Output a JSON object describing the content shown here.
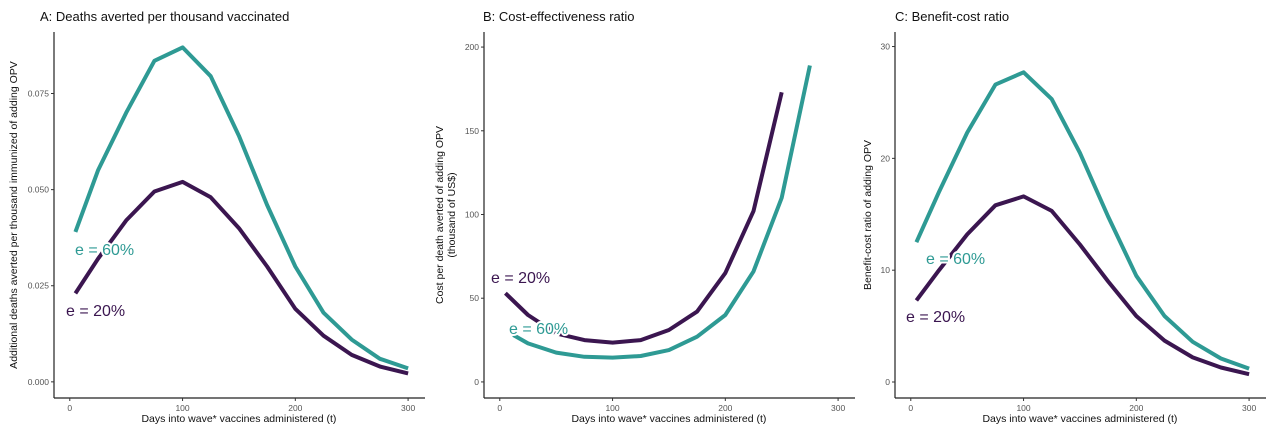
{
  "colors": {
    "e20": "#3b1650",
    "e60": "#2e9a94"
  },
  "chart_data": [
    {
      "type": "line",
      "title": "A: Deaths averted per thousand vaccinated",
      "xlabel": "Days into wave* vaccines administered (t)",
      "ylabel": "Additional deaths averted per thousand immunized of adding OPV",
      "xlim": [
        -14,
        315
      ],
      "ylim": [
        -0.0042,
        0.091
      ],
      "xticks": [
        0,
        100,
        200,
        300
      ],
      "xtick_labels": [
        "0",
        "100",
        "200",
        "300"
      ],
      "yticks": [
        0,
        0.025,
        0.05,
        0.075
      ],
      "ytick_labels": [
        "0.000",
        "0.025",
        "0.050",
        "0.075"
      ],
      "grid": false,
      "series": [
        {
          "name": "e = 60%",
          "color_key": "e60",
          "x": [
            5,
            25,
            50,
            75,
            100,
            125,
            150,
            175,
            200,
            225,
            250,
            275,
            300
          ],
          "y": [
            0.039,
            0.055,
            0.07,
            0.0835,
            0.087,
            0.0795,
            0.064,
            0.046,
            0.03,
            0.018,
            0.011,
            0.006,
            0.0035
          ]
        },
        {
          "name": "e = 20%",
          "color_key": "e20",
          "x": [
            5,
            25,
            50,
            75,
            100,
            125,
            150,
            175,
            200,
            225,
            250,
            275,
            300
          ],
          "y": [
            0.023,
            0.032,
            0.042,
            0.0495,
            0.052,
            0.048,
            0.04,
            0.03,
            0.019,
            0.012,
            0.007,
            0.004,
            0.0022
          ]
        }
      ]
    },
    {
      "type": "line",
      "title": "B: Cost-effectiveness ratio",
      "xlabel": "Days into wave* vaccines administered (t)",
      "ylabel": "Cost per death averted of adding OPV",
      "ylabel2": "(thousand of US$)",
      "xlim": [
        -14,
        315
      ],
      "ylim": [
        -9.6,
        209
      ],
      "xticks": [
        0,
        100,
        200,
        300
      ],
      "xtick_labels": [
        "0",
        "100",
        "200",
        "300"
      ],
      "yticks": [
        0,
        50,
        100,
        150,
        200
      ],
      "ytick_labels": [
        "0",
        "50",
        "100",
        "150",
        "200"
      ],
      "grid": false,
      "series": [
        {
          "name": "e = 20%",
          "color_key": "e20",
          "x": [
            5,
            25,
            50,
            75,
            100,
            125,
            150,
            175,
            200,
            225,
            250
          ],
          "y": [
            53,
            40,
            29,
            25,
            23.5,
            25,
            31,
            42,
            65,
            102,
            173
          ]
        },
        {
          "name": "e = 60%",
          "color_key": "e60",
          "x": [
            12,
            25,
            50,
            75,
            100,
            125,
            150,
            175,
            200,
            225,
            250,
            275
          ],
          "y": [
            28,
            23,
            17.5,
            15,
            14.5,
            15.5,
            19,
            27,
            40,
            66,
            110,
            189
          ]
        }
      ]
    },
    {
      "type": "line",
      "title": "C: Benefit-cost ratio",
      "xlabel": "Days into wave* vaccines administered (t)",
      "ylabel": "Benefit-cost ratio of adding OPV",
      "xlim": [
        -14,
        315
      ],
      "ylim": [
        -1.43,
        31.3
      ],
      "xticks": [
        0,
        100,
        200,
        300
      ],
      "xtick_labels": [
        "0",
        "100",
        "200",
        "300"
      ],
      "yticks": [
        0,
        10,
        20,
        30
      ],
      "ytick_labels": [
        "0",
        "10",
        "20",
        "30"
      ],
      "grid": false,
      "series": [
        {
          "name": "e = 60%",
          "color_key": "e60",
          "x": [
            5,
            25,
            50,
            75,
            100,
            125,
            150,
            175,
            200,
            225,
            250,
            275,
            300
          ],
          "y": [
            12.5,
            17,
            22.3,
            26.6,
            27.7,
            25.3,
            20.5,
            14.8,
            9.5,
            5.9,
            3.6,
            2.1,
            1.2
          ]
        },
        {
          "name": "e = 20%",
          "color_key": "e20",
          "x": [
            5,
            25,
            50,
            75,
            100,
            125,
            150,
            175,
            200,
            225,
            250,
            275,
            300
          ],
          "y": [
            7.3,
            10,
            13.2,
            15.8,
            16.6,
            15.3,
            12.3,
            9,
            5.9,
            3.7,
            2.2,
            1.3,
            0.7
          ]
        }
      ]
    }
  ]
}
